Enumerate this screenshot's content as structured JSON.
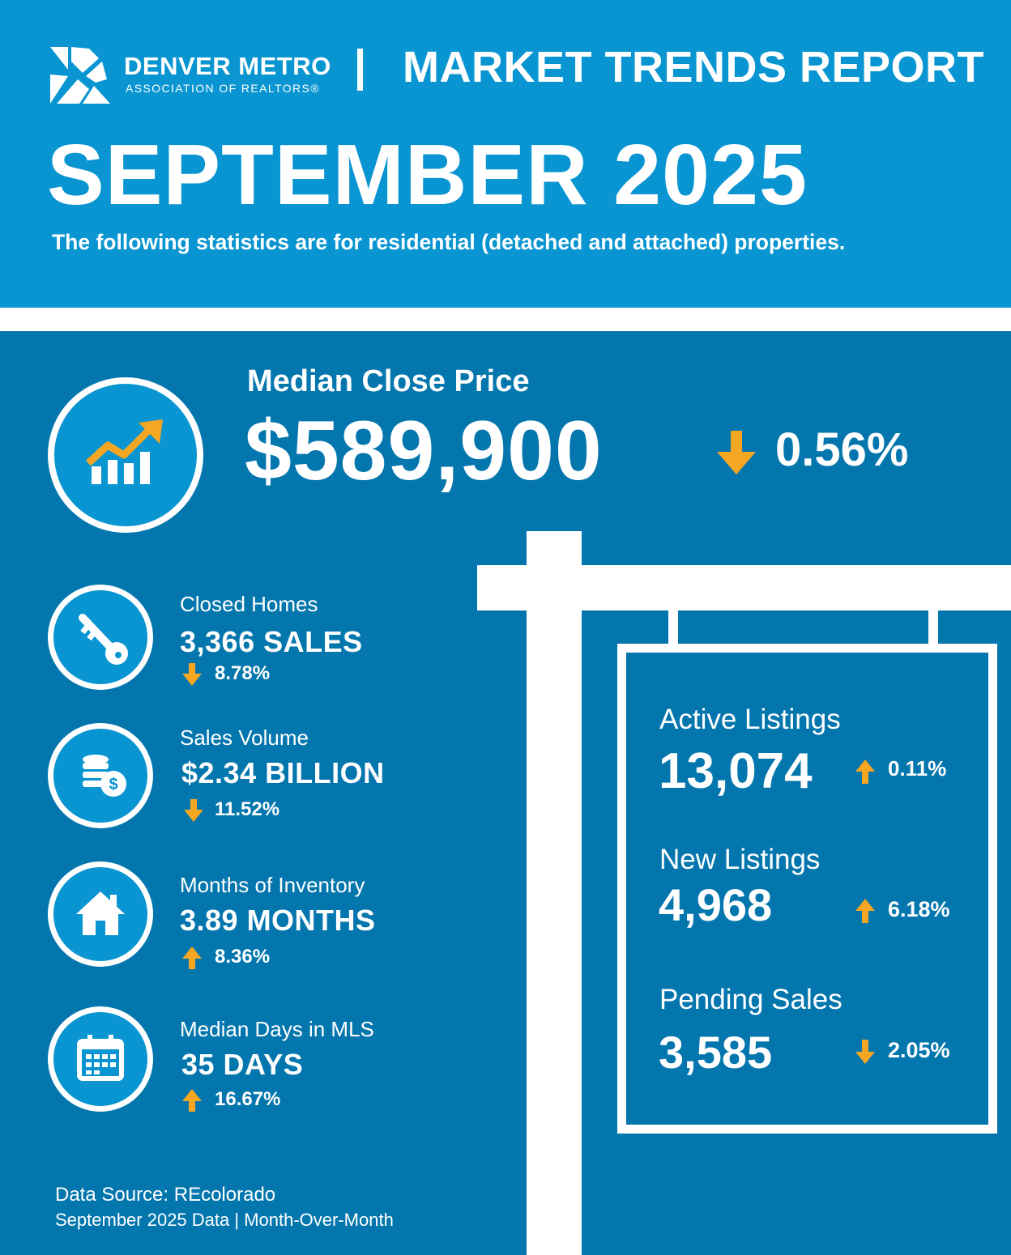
{
  "header": {
    "org_name": "DENVER METRO",
    "org_sub": "ASSOCIATION OF REALTORS®",
    "report_title": "MARKET TRENDS REPORT",
    "month": "SEPTEMBER 2025",
    "subtitle": "The following statistics are for residential (detached and attached) properties."
  },
  "colors": {
    "top_band": "#0895d1",
    "bottom_band": "#0376ae",
    "accent_arrow": "#f5a623",
    "white": "#ffffff"
  },
  "median_close_price": {
    "label": "Median Close Price",
    "value": "$589,900",
    "change": "0.56%",
    "direction": "down",
    "icon": "chart-growth-icon"
  },
  "stats": [
    {
      "label": "Closed Homes",
      "value": "3,366 SALES",
      "change": "8.78%",
      "direction": "down",
      "icon": "key-icon"
    },
    {
      "label": "Sales Volume",
      "value": "$2.34 BILLION",
      "change": "11.52%",
      "direction": "down",
      "icon": "coins-icon"
    },
    {
      "label": "Months of Inventory",
      "value": "3.89 MONTHS",
      "change": "8.36%",
      "direction": "up",
      "icon": "house-icon"
    },
    {
      "label": "Median Days in MLS",
      "value": "35 DAYS",
      "change": "16.67%",
      "direction": "up",
      "icon": "calendar-icon"
    }
  ],
  "sign": [
    {
      "label": "Active Listings",
      "value": "13,074",
      "change": "0.11%",
      "direction": "up"
    },
    {
      "label": "New Listings",
      "value": "4,968",
      "change": "6.18%",
      "direction": "up"
    },
    {
      "label": "Pending Sales",
      "value": "3,585",
      "change": "2.05%",
      "direction": "down"
    }
  ],
  "footer": {
    "source": "Data Source: REcolorado",
    "note": "September 2025 Data | Month-Over-Month"
  }
}
